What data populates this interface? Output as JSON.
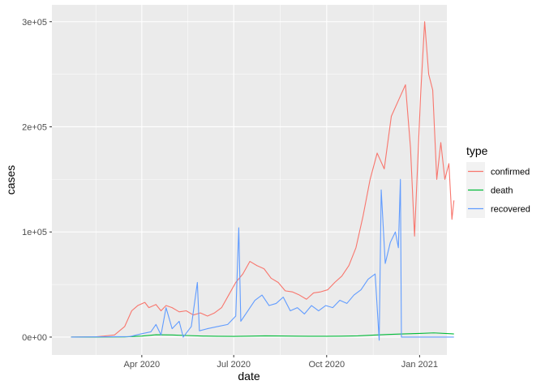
{
  "chart_data": {
    "type": "line",
    "xlabel": "date",
    "ylabel": "cases",
    "x_ticks": [
      {
        "date": "2020-04-01",
        "label": "Apr 2020"
      },
      {
        "date": "2020-07-01",
        "label": "Jul 2020"
      },
      {
        "date": "2020-10-01",
        "label": "Oct 2020"
      },
      {
        "date": "2021-01-01",
        "label": "Jan 2021"
      }
    ],
    "y_ticks": [
      {
        "value": 0,
        "label": "0e+00"
      },
      {
        "value": 100000,
        "label": "1e+05"
      },
      {
        "value": 200000,
        "label": "2e+05"
      },
      {
        "value": 300000,
        "label": "3e+05"
      }
    ],
    "xlim": [
      "2020-01-03",
      "2021-01-28"
    ],
    "ylim": [
      -17000,
      316000
    ],
    "grid": true,
    "legend": {
      "title": "type",
      "position": "right",
      "entries": [
        {
          "name": "confirmed",
          "color": "#F8766D"
        },
        {
          "name": "death",
          "color": "#00BA38"
        },
        {
          "name": "recovered",
          "color": "#619CFF"
        }
      ]
    },
    "series": [
      {
        "name": "confirmed",
        "color": "#F8766D",
        "points": [
          [
            "2020-01-22",
            0
          ],
          [
            "2020-02-15",
            200
          ],
          [
            "2020-03-05",
            2000
          ],
          [
            "2020-03-15",
            10000
          ],
          [
            "2020-03-22",
            25000
          ],
          [
            "2020-03-28",
            30000
          ],
          [
            "2020-04-04",
            33000
          ],
          [
            "2020-04-08",
            28000
          ],
          [
            "2020-04-15",
            31000
          ],
          [
            "2020-04-20",
            25000
          ],
          [
            "2020-04-25",
            30000
          ],
          [
            "2020-05-01",
            28000
          ],
          [
            "2020-05-08",
            24000
          ],
          [
            "2020-05-15",
            25000
          ],
          [
            "2020-05-22",
            21000
          ],
          [
            "2020-05-29",
            23000
          ],
          [
            "2020-06-05",
            20000
          ],
          [
            "2020-06-12",
            23000
          ],
          [
            "2020-06-19",
            28000
          ],
          [
            "2020-06-26",
            40000
          ],
          [
            "2020-07-03",
            52000
          ],
          [
            "2020-07-10",
            60000
          ],
          [
            "2020-07-17",
            72000
          ],
          [
            "2020-07-24",
            68000
          ],
          [
            "2020-07-31",
            65000
          ],
          [
            "2020-08-07",
            56000
          ],
          [
            "2020-08-14",
            52000
          ],
          [
            "2020-08-21",
            44000
          ],
          [
            "2020-08-28",
            43000
          ],
          [
            "2020-09-04",
            40000
          ],
          [
            "2020-09-11",
            36000
          ],
          [
            "2020-09-18",
            42000
          ],
          [
            "2020-09-25",
            43000
          ],
          [
            "2020-10-02",
            45000
          ],
          [
            "2020-10-09",
            52000
          ],
          [
            "2020-10-16",
            58000
          ],
          [
            "2020-10-23",
            68000
          ],
          [
            "2020-10-30",
            85000
          ],
          [
            "2020-11-06",
            115000
          ],
          [
            "2020-11-13",
            150000
          ],
          [
            "2020-11-20",
            175000
          ],
          [
            "2020-11-27",
            160000
          ],
          [
            "2020-12-04",
            210000
          ],
          [
            "2020-12-11",
            225000
          ],
          [
            "2020-12-18",
            240000
          ],
          [
            "2020-12-23",
            180000
          ],
          [
            "2020-12-27",
            96000
          ],
          [
            "2021-01-02",
            230000
          ],
          [
            "2021-01-06",
            300000
          ],
          [
            "2021-01-10",
            250000
          ],
          [
            "2021-01-14",
            235000
          ],
          [
            "2021-01-18",
            150000
          ],
          [
            "2021-01-22",
            185000
          ],
          [
            "2021-01-26",
            150000
          ],
          [
            "2021-01-30",
            165000
          ],
          [
            "2021-02-02",
            112000
          ],
          [
            "2021-02-04",
            130000
          ]
        ]
      },
      {
        "name": "death",
        "color": "#00BA38",
        "points": [
          [
            "2020-01-22",
            0
          ],
          [
            "2020-03-15",
            200
          ],
          [
            "2020-04-01",
            1000
          ],
          [
            "2020-04-15",
            2200
          ],
          [
            "2020-05-01",
            2000
          ],
          [
            "2020-05-15",
            1500
          ],
          [
            "2020-06-01",
            1000
          ],
          [
            "2020-06-15",
            800
          ],
          [
            "2020-07-01",
            700
          ],
          [
            "2020-07-15",
            900
          ],
          [
            "2020-08-01",
            1200
          ],
          [
            "2020-08-15",
            1100
          ],
          [
            "2020-09-01",
            900
          ],
          [
            "2020-09-15",
            800
          ],
          [
            "2020-10-01",
            800
          ],
          [
            "2020-10-15",
            900
          ],
          [
            "2020-11-01",
            1200
          ],
          [
            "2020-11-15",
            1800
          ],
          [
            "2020-12-01",
            2500
          ],
          [
            "2020-12-15",
            3000
          ],
          [
            "2021-01-01",
            3500
          ],
          [
            "2021-01-15",
            4000
          ],
          [
            "2021-02-01",
            3200
          ],
          [
            "2021-02-04",
            3000
          ]
        ]
      },
      {
        "name": "recovered",
        "color": "#619CFF",
        "points": [
          [
            "2020-01-22",
            0
          ],
          [
            "2020-03-20",
            500
          ],
          [
            "2020-03-31",
            3000
          ],
          [
            "2020-04-10",
            5000
          ],
          [
            "2020-04-15",
            12000
          ],
          [
            "2020-04-20",
            2000
          ],
          [
            "2020-04-25",
            28000
          ],
          [
            "2020-05-01",
            8000
          ],
          [
            "2020-05-08",
            15000
          ],
          [
            "2020-05-12",
            0
          ],
          [
            "2020-05-20",
            10000
          ],
          [
            "2020-05-26",
            52000
          ],
          [
            "2020-05-28",
            6000
          ],
          [
            "2020-06-05",
            8000
          ],
          [
            "2020-06-15",
            10000
          ],
          [
            "2020-06-25",
            12000
          ],
          [
            "2020-07-03",
            20000
          ],
          [
            "2020-07-06",
            104000
          ],
          [
            "2020-07-08",
            15000
          ],
          [
            "2020-07-15",
            25000
          ],
          [
            "2020-07-22",
            35000
          ],
          [
            "2020-07-29",
            40000
          ],
          [
            "2020-08-05",
            30000
          ],
          [
            "2020-08-12",
            32000
          ],
          [
            "2020-08-19",
            38000
          ],
          [
            "2020-08-26",
            25000
          ],
          [
            "2020-09-02",
            28000
          ],
          [
            "2020-09-09",
            22000
          ],
          [
            "2020-09-16",
            30000
          ],
          [
            "2020-09-23",
            25000
          ],
          [
            "2020-09-30",
            30000
          ],
          [
            "2020-10-07",
            28000
          ],
          [
            "2020-10-14",
            35000
          ],
          [
            "2020-10-21",
            32000
          ],
          [
            "2020-10-28",
            40000
          ],
          [
            "2020-11-04",
            45000
          ],
          [
            "2020-11-11",
            55000
          ],
          [
            "2020-11-18",
            60000
          ],
          [
            "2020-11-22",
            -3000
          ],
          [
            "2020-11-24",
            140000
          ],
          [
            "2020-11-28",
            70000
          ],
          [
            "2020-12-03",
            90000
          ],
          [
            "2020-12-08",
            100000
          ],
          [
            "2020-12-11",
            85000
          ],
          [
            "2020-12-13",
            150000
          ],
          [
            "2020-12-14",
            0
          ],
          [
            "2021-02-04",
            0
          ]
        ]
      }
    ]
  }
}
